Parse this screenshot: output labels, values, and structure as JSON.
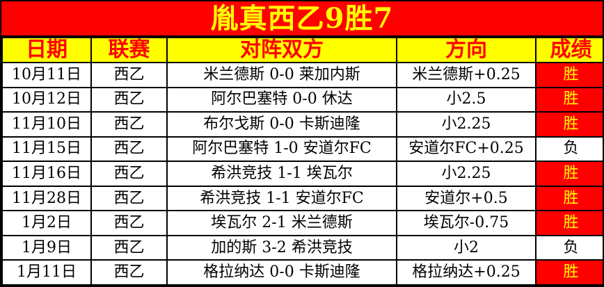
{
  "title": "胤真西乙9胜7",
  "table": {
    "headers": [
      "日期",
      "联赛",
      "对阵双方",
      "方向",
      "成绩"
    ],
    "rows": [
      {
        "date": "10月11日",
        "league": "西乙",
        "match": "米兰德斯 0-0 莱加内斯",
        "direction": "米兰德斯+0.25",
        "result": "胜",
        "win": true
      },
      {
        "date": "10月12日",
        "league": "西乙",
        "match": "阿尔巴塞特 0-0 休达",
        "direction": "小2.5",
        "result": "胜",
        "win": true
      },
      {
        "date": "11月10日",
        "league": "西乙",
        "match": "布尔戈斯 0-0 卡斯迪隆",
        "direction": "小2.25",
        "result": "胜",
        "win": true
      },
      {
        "date": "11月15日",
        "league": "西乙",
        "match": "阿尔巴塞特 1-0 安道尔FC",
        "direction": "安道尔FC+0.25",
        "result": "负",
        "win": false
      },
      {
        "date": "11月16日",
        "league": "西乙",
        "match": "希洪竞技 1-1 埃瓦尔",
        "direction": "小2.25",
        "result": "胜",
        "win": true
      },
      {
        "date": "11月28日",
        "league": "西乙",
        "match": "希洪竞技 1-1 安道尔FC",
        "direction": "安道尔+0.5",
        "result": "胜",
        "win": true
      },
      {
        "date": "1月2日",
        "league": "西乙",
        "match": "埃瓦尔 2-1 米兰德斯",
        "direction": "埃瓦尔-0.75",
        "result": "胜",
        "win": true
      },
      {
        "date": "1月9日",
        "league": "西乙",
        "match": "加的斯 3-2 希洪竞技",
        "direction": "小2",
        "result": "负",
        "win": false
      },
      {
        "date": "1月11日",
        "league": "西乙",
        "match": "格拉纳达 0-0 卡斯迪隆",
        "direction": "格拉纳达+0.25",
        "result": "胜",
        "win": true
      }
    ]
  },
  "colors": {
    "accent_red": "#ff0000",
    "accent_yellow": "#ffff00",
    "grid_black": "#000000",
    "loss_bg": "#ffffff"
  }
}
